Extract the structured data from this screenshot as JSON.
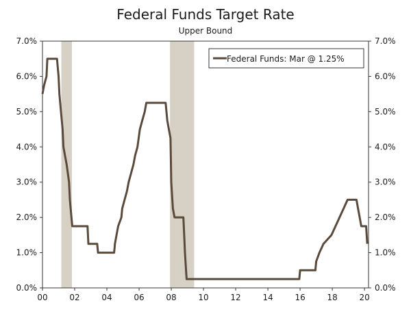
{
  "chart_data": {
    "type": "line",
    "title": "Federal Funds Target Rate",
    "subtitle": "Upper Bound",
    "xlim": [
      2000,
      2020.25
    ],
    "ylim": [
      0,
      7
    ],
    "x_tick_values": [
      2000,
      2002,
      2004,
      2006,
      2008,
      2010,
      2012,
      2014,
      2016,
      2018,
      2020
    ],
    "x_tick_labels": [
      "00",
      "02",
      "04",
      "06",
      "08",
      "10",
      "12",
      "14",
      "16",
      "18",
      "20"
    ],
    "y_tick_values": [
      0,
      1,
      2,
      3,
      4,
      5,
      6,
      7
    ],
    "y_tick_labels": [
      "0.0%",
      "1.0%",
      "2.0%",
      "3.0%",
      "4.0%",
      "5.0%",
      "6.0%",
      "7.0%"
    ],
    "recessions": [
      [
        2001.17,
        2001.83
      ],
      [
        2007.92,
        2009.42
      ]
    ],
    "legend_position": "top-right",
    "colors": {
      "line": "#594a3c",
      "recession": "#d6d1c4",
      "axis": "#333333"
    },
    "series": [
      {
        "name": "Federal Funds: Mar @ 1.25%",
        "points": [
          [
            2000.0,
            5.5
          ],
          [
            2000.1,
            5.75
          ],
          [
            2000.25,
            6.0
          ],
          [
            2000.3,
            6.5
          ],
          [
            2000.9,
            6.5
          ],
          [
            2001.0,
            6.0
          ],
          [
            2001.05,
            5.5
          ],
          [
            2001.15,
            5.0
          ],
          [
            2001.25,
            4.5
          ],
          [
            2001.3,
            4.0
          ],
          [
            2001.4,
            3.75
          ],
          [
            2001.5,
            3.5
          ],
          [
            2001.65,
            3.0
          ],
          [
            2001.7,
            2.5
          ],
          [
            2001.8,
            2.0
          ],
          [
            2001.85,
            1.75
          ],
          [
            2002.8,
            1.75
          ],
          [
            2002.85,
            1.25
          ],
          [
            2003.4,
            1.25
          ],
          [
            2003.45,
            1.0
          ],
          [
            2004.45,
            1.0
          ],
          [
            2004.5,
            1.25
          ],
          [
            2004.6,
            1.5
          ],
          [
            2004.7,
            1.75
          ],
          [
            2004.9,
            2.0
          ],
          [
            2004.95,
            2.25
          ],
          [
            2005.1,
            2.5
          ],
          [
            2005.25,
            2.75
          ],
          [
            2005.35,
            3.0
          ],
          [
            2005.5,
            3.25
          ],
          [
            2005.65,
            3.5
          ],
          [
            2005.75,
            3.75
          ],
          [
            2005.9,
            4.0
          ],
          [
            2006.05,
            4.5
          ],
          [
            2006.2,
            4.75
          ],
          [
            2006.35,
            5.0
          ],
          [
            2006.45,
            5.25
          ],
          [
            2007.65,
            5.25
          ],
          [
            2007.75,
            4.75
          ],
          [
            2007.85,
            4.5
          ],
          [
            2007.95,
            4.25
          ],
          [
            2008.0,
            3.0
          ],
          [
            2008.1,
            2.25
          ],
          [
            2008.2,
            2.0
          ],
          [
            2008.75,
            2.0
          ],
          [
            2008.8,
            1.5
          ],
          [
            2008.85,
            1.0
          ],
          [
            2008.95,
            0.25
          ],
          [
            2015.95,
            0.25
          ],
          [
            2016.0,
            0.5
          ],
          [
            2016.95,
            0.5
          ],
          [
            2017.0,
            0.75
          ],
          [
            2017.2,
            1.0
          ],
          [
            2017.45,
            1.25
          ],
          [
            2017.95,
            1.5
          ],
          [
            2018.2,
            1.75
          ],
          [
            2018.45,
            2.0
          ],
          [
            2018.7,
            2.25
          ],
          [
            2018.95,
            2.5
          ],
          [
            2019.5,
            2.5
          ],
          [
            2019.6,
            2.25
          ],
          [
            2019.7,
            2.0
          ],
          [
            2019.8,
            1.75
          ],
          [
            2020.1,
            1.75
          ],
          [
            2020.17,
            1.25
          ]
        ]
      }
    ]
  }
}
